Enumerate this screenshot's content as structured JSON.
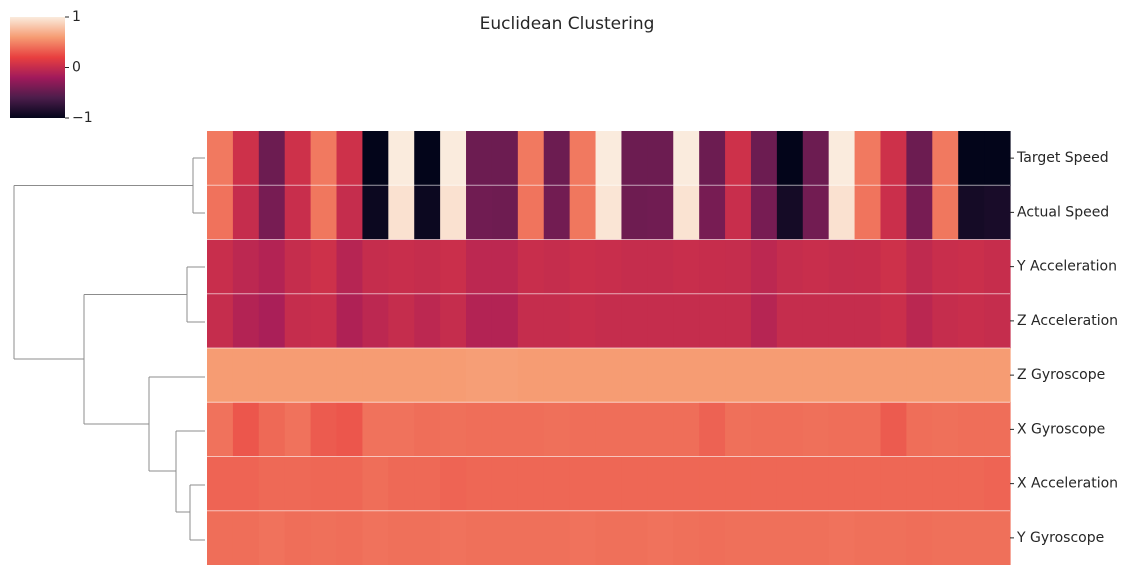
{
  "chart_data": {
    "type": "heatmap",
    "title": "Euclidean Clustering",
    "rows": [
      "Target Speed",
      "Actual Speed",
      "Y Acceleration",
      "Z Acceleration",
      "Z Gyroscope",
      "X Gyroscope",
      "X Acceleration",
      "Y Gyroscope"
    ],
    "values": [
      [
        0.45,
        0.05,
        -0.45,
        0.05,
        0.45,
        0.05,
        -1,
        1,
        -1,
        1,
        -0.45,
        -0.45,
        0.45,
        -0.45,
        0.45,
        1,
        -0.45,
        -0.45,
        1,
        -0.45,
        0.05,
        -0.45,
        -1,
        -0.45,
        1,
        0.45,
        0.05,
        -0.45,
        0.45,
        -1,
        -1
      ],
      [
        0.42,
        0.0,
        -0.4,
        0.02,
        0.44,
        0.0,
        -0.95,
        0.95,
        -0.95,
        0.95,
        -0.43,
        -0.44,
        0.43,
        -0.42,
        0.44,
        0.97,
        -0.44,
        -0.43,
        0.96,
        -0.4,
        0.02,
        -0.4,
        -0.9,
        -0.42,
        0.95,
        0.43,
        0.03,
        -0.4,
        0.44,
        -0.9,
        -0.88
      ],
      [
        0.02,
        -0.05,
        -0.1,
        0.0,
        0.05,
        -0.08,
        0.0,
        0.02,
        0.0,
        0.03,
        -0.05,
        -0.05,
        0.02,
        0.0,
        0.03,
        0.02,
        0.0,
        0.0,
        0.02,
        0.01,
        0.0,
        -0.05,
        0.0,
        0.02,
        0.0,
        0.01,
        0.05,
        -0.03,
        0.02,
        0.03,
        0.01
      ],
      [
        0.0,
        -0.1,
        -0.15,
        0.0,
        0.02,
        -0.12,
        -0.05,
        0.0,
        -0.05,
        0.0,
        -0.1,
        -0.1,
        0.0,
        0.0,
        0.02,
        0.0,
        0.0,
        0.0,
        0.0,
        0.0,
        0.0,
        -0.08,
        0.0,
        0.0,
        0.0,
        0.0,
        0.03,
        -0.06,
        0.0,
        0.02,
        0.0
      ],
      [
        0.6,
        0.6,
        0.6,
        0.6,
        0.6,
        0.6,
        0.6,
        0.6,
        0.6,
        0.6,
        0.61,
        0.61,
        0.6,
        0.6,
        0.6,
        0.6,
        0.6,
        0.6,
        0.6,
        0.6,
        0.6,
        0.6,
        0.6,
        0.6,
        0.6,
        0.6,
        0.6,
        0.6,
        0.6,
        0.6,
        0.6
      ],
      [
        0.42,
        0.3,
        0.38,
        0.42,
        0.32,
        0.3,
        0.42,
        0.42,
        0.4,
        0.41,
        0.4,
        0.4,
        0.4,
        0.41,
        0.4,
        0.4,
        0.4,
        0.4,
        0.4,
        0.35,
        0.41,
        0.4,
        0.4,
        0.41,
        0.4,
        0.4,
        0.32,
        0.4,
        0.41,
        0.4,
        0.4
      ],
      [
        0.36,
        0.36,
        0.38,
        0.38,
        0.37,
        0.37,
        0.4,
        0.38,
        0.38,
        0.36,
        0.37,
        0.37,
        0.37,
        0.37,
        0.37,
        0.37,
        0.37,
        0.37,
        0.37,
        0.37,
        0.37,
        0.37,
        0.37,
        0.37,
        0.37,
        0.37,
        0.37,
        0.37,
        0.37,
        0.37,
        0.36
      ],
      [
        0.4,
        0.4,
        0.42,
        0.4,
        0.41,
        0.4,
        0.42,
        0.41,
        0.41,
        0.42,
        0.41,
        0.41,
        0.41,
        0.41,
        0.42,
        0.41,
        0.41,
        0.42,
        0.41,
        0.4,
        0.41,
        0.41,
        0.41,
        0.41,
        0.42,
        0.41,
        0.41,
        0.4,
        0.41,
        0.41,
        0.41
      ]
    ],
    "zlim": [
      -1,
      1
    ],
    "zticks": [
      1,
      0,
      {
        "value": -1,
        "label": "−1"
      }
    ],
    "colormap": [
      "#03051a",
      "#4c1d4b",
      "#a11a5b",
      "#e83f3f",
      "#f69c73",
      "#faebdd"
    ]
  }
}
